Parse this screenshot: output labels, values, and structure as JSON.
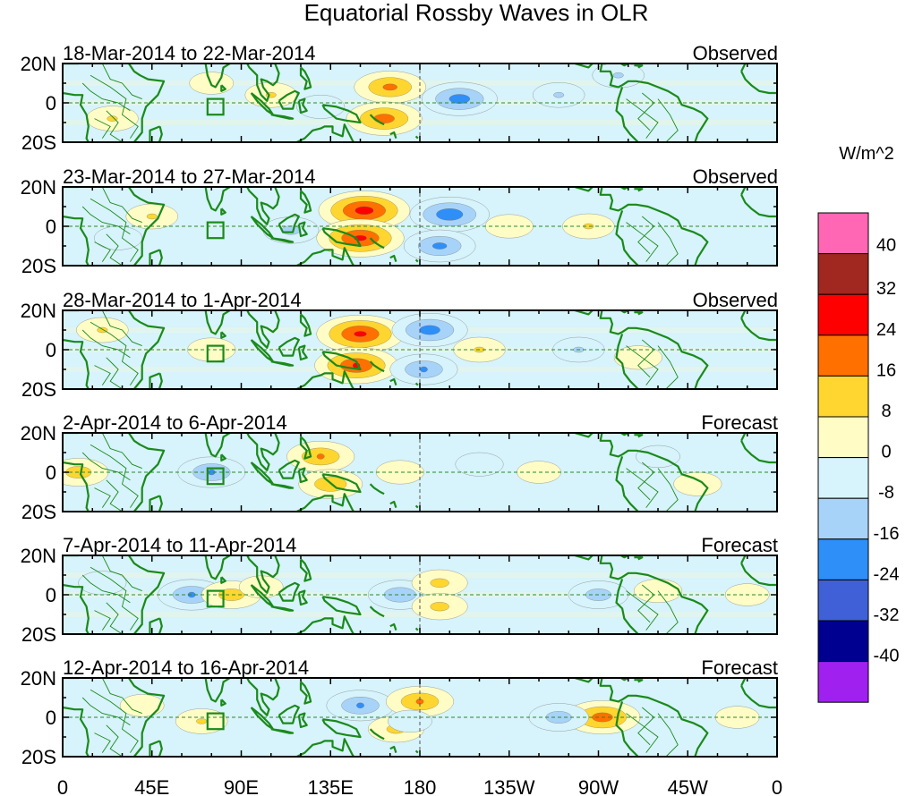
{
  "chart_data": {
    "type": "heatmap",
    "title": "Equatorial Rossby Waves in OLR",
    "units": "W/m^2",
    "x_ticks": [
      "0",
      "45E",
      "90E",
      "135E",
      "180",
      "135W",
      "90W",
      "45W",
      "0"
    ],
    "y_ticks": [
      "20N",
      "0",
      "20S"
    ],
    "colorbar": {
      "labels": [
        "40",
        "32",
        "24",
        "16",
        "8",
        "0",
        "-8",
        "-16",
        "-24",
        "-32",
        "-40"
      ],
      "colors": [
        "#ff66b3",
        "#a02820",
        "#ff0000",
        "#ff7000",
        "#ffd630",
        "#fffcc6",
        "#d7f3fb",
        "#a8d3f8",
        "#2f8ff8",
        "#4060d8",
        "#000090",
        "#a020f0"
      ]
    },
    "colors": {
      "coast": "#1a8a1a",
      "equator": "#2a8a2a"
    },
    "panels": [
      {
        "date_range": "18-Mar-2014 to 22-Mar-2014",
        "status": "Observed"
      },
      {
        "date_range": "23-Mar-2014 to 27-Mar-2014",
        "status": "Observed"
      },
      {
        "date_range": "28-Mar-2014 to 1-Apr-2014",
        "status": "Observed"
      },
      {
        "date_range": "2-Apr-2014 to 6-Apr-2014",
        "status": "Forecast"
      },
      {
        "date_range": "7-Apr-2014 to 11-Apr-2014",
        "status": "Forecast"
      },
      {
        "date_range": "12-Apr-2014 to 16-Apr-2014",
        "status": "Forecast"
      }
    ],
    "anomalies": [
      [
        {
          "lon": 165,
          "lat": 8,
          "value": 20
        },
        {
          "lon": 162,
          "lat": -8,
          "value": 22
        },
        {
          "lon": 200,
          "lat": 2,
          "value": -22
        },
        {
          "lon": 105,
          "lat": 4,
          "value": 10
        },
        {
          "lon": 25,
          "lat": -8,
          "value": 10
        },
        {
          "lon": 250,
          "lat": 4,
          "value": -10
        },
        {
          "lon": 280,
          "lat": 14,
          "value": -10
        },
        {
          "lon": 75,
          "lat": 10,
          "value": 6
        },
        {
          "lon": 130,
          "lat": -2,
          "value": -8
        }
      ],
      [
        {
          "lon": 152,
          "lat": 8,
          "value": 30
        },
        {
          "lon": 150,
          "lat": -6,
          "value": 28
        },
        {
          "lon": 195,
          "lat": 6,
          "value": -24
        },
        {
          "lon": 190,
          "lat": -10,
          "value": -20
        },
        {
          "lon": 45,
          "lat": 5,
          "value": 10
        },
        {
          "lon": 115,
          "lat": -2,
          "value": -12
        },
        {
          "lon": 225,
          "lat": 0,
          "value": 8
        },
        {
          "lon": 265,
          "lat": 0,
          "value": 10
        },
        {
          "lon": 28,
          "lat": -6,
          "value": -8
        }
      ],
      [
        {
          "lon": 150,
          "lat": 8,
          "value": 28
        },
        {
          "lon": 148,
          "lat": -8,
          "value": 26
        },
        {
          "lon": 185,
          "lat": 10,
          "value": -22
        },
        {
          "lon": 182,
          "lat": -10,
          "value": -18
        },
        {
          "lon": 210,
          "lat": 0,
          "value": 10
        },
        {
          "lon": 20,
          "lat": 10,
          "value": 10
        },
        {
          "lon": 75,
          "lat": 0,
          "value": 8
        },
        {
          "lon": 260,
          "lat": 0,
          "value": -10
        },
        {
          "lon": 290,
          "lat": -4,
          "value": 8
        }
      ],
      [
        {
          "lon": 130,
          "lat": 8,
          "value": 18
        },
        {
          "lon": 135,
          "lat": -6,
          "value": 16
        },
        {
          "lon": 8,
          "lat": 0,
          "value": 14
        },
        {
          "lon": 75,
          "lat": 0,
          "value": -18
        },
        {
          "lon": 170,
          "lat": 0,
          "value": 8
        },
        {
          "lon": 210,
          "lat": 4,
          "value": -8
        },
        {
          "lon": 240,
          "lat": 0,
          "value": 6
        },
        {
          "lon": 320,
          "lat": -6,
          "value": 8
        },
        {
          "lon": 300,
          "lat": 8,
          "value": -6
        }
      ],
      [
        {
          "lon": 65,
          "lat": 0,
          "value": -18
        },
        {
          "lon": 85,
          "lat": 0,
          "value": 14
        },
        {
          "lon": 100,
          "lat": 4,
          "value": 6
        },
        {
          "lon": 170,
          "lat": 0,
          "value": -16
        },
        {
          "lon": 190,
          "lat": 6,
          "value": 12
        },
        {
          "lon": 190,
          "lat": -6,
          "value": 12
        },
        {
          "lon": 270,
          "lat": 0,
          "value": -14
        },
        {
          "lon": 300,
          "lat": 2,
          "value": 8
        },
        {
          "lon": 345,
          "lat": 0,
          "value": 6
        },
        {
          "lon": 20,
          "lat": 6,
          "value": -8
        }
      ],
      [
        {
          "lon": 150,
          "lat": 6,
          "value": -18
        },
        {
          "lon": 180,
          "lat": 8,
          "value": 18
        },
        {
          "lon": 168,
          "lat": -6,
          "value": 12
        },
        {
          "lon": 175,
          "lat": -2,
          "value": -6
        },
        {
          "lon": 272,
          "lat": 0,
          "value": 22
        },
        {
          "lon": 250,
          "lat": 0,
          "value": -14
        },
        {
          "lon": 70,
          "lat": -2,
          "value": 10
        },
        {
          "lon": 340,
          "lat": 0,
          "value": 6
        },
        {
          "lon": 40,
          "lat": 6,
          "value": 6
        }
      ]
    ]
  }
}
